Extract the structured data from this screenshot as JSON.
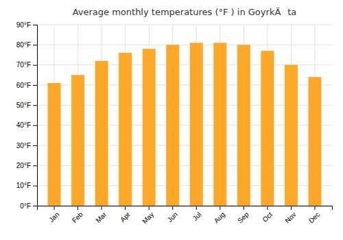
{
  "chart_data": {
    "type": "bar",
    "title": "Average monthly temperatures (°F ) in GoyrkÄta",
    "categories": [
      "Jan",
      "Feb",
      "Mar",
      "Apr",
      "May",
      "Jun",
      "Jul",
      "Aug",
      "Sep",
      "Oct",
      "Nov",
      "Dec"
    ],
    "values": [
      61,
      65,
      72,
      76,
      78,
      80,
      81,
      81,
      80,
      77,
      70,
      64
    ],
    "color": "#FFA726",
    "ylim": [
      0,
      90
    ],
    "yticks": [
      {
        "value": 0,
        "label": "0°F"
      },
      {
        "value": 10,
        "label": "10°F"
      },
      {
        "value": 20,
        "label": "20°F"
      },
      {
        "value": 30,
        "label": "30°F"
      },
      {
        "value": 40,
        "label": "40°F"
      },
      {
        "value": 50,
        "label": "50°F"
      },
      {
        "value": 60,
        "label": "60°F"
      },
      {
        "value": 70,
        "label": "70°F"
      },
      {
        "value": 80,
        "label": "80°F"
      },
      {
        "value": 90,
        "label": "90°F"
      }
    ],
    "grid": true
  }
}
